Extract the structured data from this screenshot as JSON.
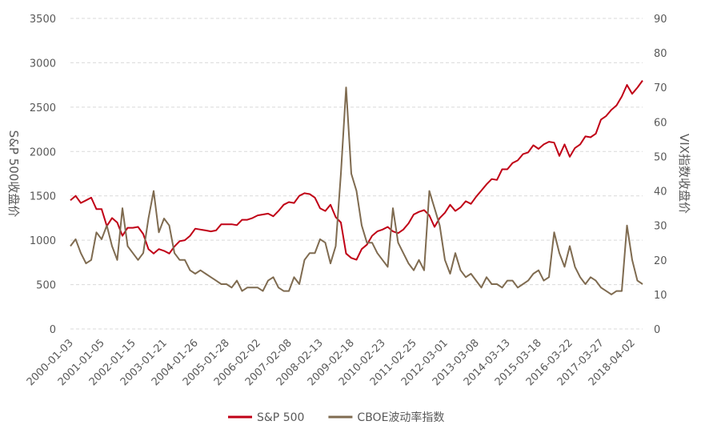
{
  "chart_data": {
    "type": "line",
    "y_label": "S&P 500收盘价",
    "y2_label": "VIX指数收盘价",
    "categories": [
      "2000-01-03",
      null,
      null,
      null,
      null,
      null,
      "2001-01-05",
      null,
      null,
      null,
      null,
      null,
      "2002-01-15",
      null,
      null,
      null,
      null,
      null,
      "2003-01-21",
      null,
      null,
      null,
      null,
      null,
      "2004-01-26",
      null,
      null,
      null,
      null,
      null,
      "2005-01-28",
      null,
      null,
      null,
      null,
      null,
      "2006-02-02",
      null,
      null,
      null,
      null,
      null,
      "2007-02-08",
      null,
      null,
      null,
      null,
      null,
      "2008-02-13",
      null,
      null,
      null,
      null,
      null,
      "2009-02-18",
      null,
      null,
      null,
      null,
      null,
      "2010-02-23",
      null,
      null,
      null,
      null,
      null,
      "2011-02-25",
      null,
      null,
      null,
      null,
      null,
      "2012-03-01",
      null,
      null,
      null,
      null,
      null,
      "2013-03-08",
      null,
      null,
      null,
      null,
      null,
      "2014-03-13",
      null,
      null,
      null,
      null,
      null,
      "2015-03-18",
      null,
      null,
      null,
      null,
      null,
      "2016-03-22",
      null,
      null,
      null,
      null,
      null,
      "2017-03-27",
      null,
      null,
      null,
      null,
      null,
      "2018-04-02",
      null,
      null
    ],
    "series": [
      {
        "name": "S&P 500",
        "color": "#c00016",
        "values": [
          1450,
          1500,
          1420,
          1450,
          1480,
          1350,
          1350,
          1160,
          1250,
          1200,
          1050,
          1140,
          1140,
          1150,
          1070,
          900,
          850,
          900,
          880,
          850,
          930,
          990,
          1000,
          1050,
          1130,
          1120,
          1110,
          1100,
          1110,
          1180,
          1180,
          1180,
          1170,
          1230,
          1230,
          1250,
          1280,
          1290,
          1300,
          1270,
          1330,
          1400,
          1430,
          1420,
          1500,
          1530,
          1520,
          1480,
          1360,
          1330,
          1400,
          1260,
          1200,
          850,
          800,
          780,
          900,
          950,
          1050,
          1100,
          1120,
          1150,
          1100,
          1080,
          1120,
          1190,
          1290,
          1320,
          1340,
          1280,
          1150,
          1250,
          1310,
          1400,
          1330,
          1370,
          1440,
          1410,
          1490,
          1560,
          1630,
          1690,
          1680,
          1800,
          1800,
          1870,
          1900,
          1970,
          1990,
          2070,
          2030,
          2080,
          2110,
          2100,
          1950,
          2080,
          1940,
          2040,
          2080,
          2170,
          2160,
          2200,
          2360,
          2400,
          2470,
          2520,
          2620,
          2750,
          2650,
          2720,
          2800
        ]
      },
      {
        "name": "CBOE波动率指数",
        "color": "#7f6b50",
        "axis": "y2",
        "values": [
          24,
          26,
          22,
          19,
          20,
          28,
          26,
          30,
          24,
          20,
          35,
          24,
          22,
          20,
          22,
          32,
          40,
          28,
          32,
          30,
          22,
          20,
          20,
          17,
          16,
          17,
          16,
          15,
          14,
          13,
          13,
          12,
          14,
          11,
          12,
          12,
          12,
          11,
          14,
          15,
          12,
          11,
          11,
          15,
          13,
          20,
          22,
          22,
          26,
          25,
          19,
          24,
          45,
          70,
          45,
          40,
          30,
          25,
          25,
          22,
          20,
          18,
          35,
          25,
          22,
          19,
          17,
          20,
          17,
          40,
          35,
          30,
          20,
          16,
          22,
          17,
          15,
          16,
          14,
          12,
          15,
          13,
          13,
          12,
          14,
          14,
          12,
          13,
          14,
          16,
          17,
          14,
          15,
          28,
          22,
          18,
          24,
          18,
          15,
          13,
          15,
          14,
          12,
          11,
          10,
          11,
          11,
          30,
          20,
          14,
          13
        ]
      }
    ],
    "ylim": [
      0,
      3500
    ],
    "yticks": [
      0,
      500,
      1000,
      1500,
      2000,
      2500,
      3000,
      3500
    ],
    "y2lim": [
      0,
      90
    ],
    "y2ticks": [
      0,
      10,
      20,
      30,
      40,
      50,
      60,
      70,
      80,
      90
    ],
    "grid": true,
    "legend": "bottom"
  }
}
